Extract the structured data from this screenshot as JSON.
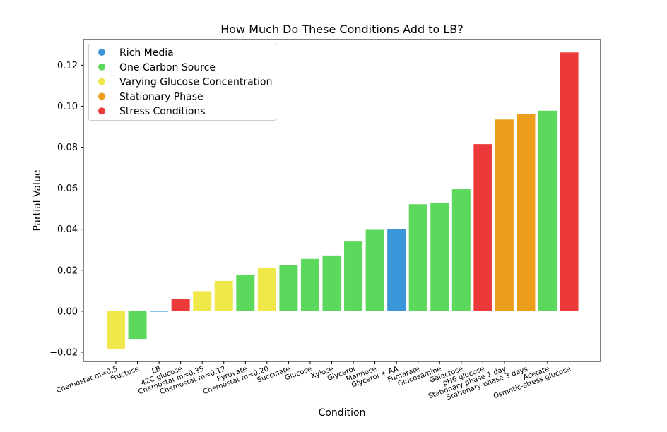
{
  "chart_data": {
    "type": "bar",
    "title": "How Much Do These Conditions Add to LB?",
    "xlabel": "Condition",
    "ylabel": "Partial Value",
    "ylim": [
      -0.0245,
      0.1325
    ],
    "yticks": [
      -0.02,
      0.0,
      0.02,
      0.04,
      0.06,
      0.08,
      0.1,
      0.12
    ],
    "ytick_labels": [
      "−0.02",
      "0.00",
      "0.02",
      "0.04",
      "0.06",
      "0.08",
      "0.10",
      "0.12"
    ],
    "grid": false,
    "legend_position": "top-left",
    "legend": [
      {
        "name": "Rich Media",
        "color": "#3a96d9"
      },
      {
        "name": "One Carbon Source",
        "color": "#5cd95c"
      },
      {
        "name": "Varying Glucose Concentration",
        "color": "#f0e84a"
      },
      {
        "name": "Stationary Phase",
        "color": "#ec9e1b"
      },
      {
        "name": "Stress Conditions",
        "color": "#ec3a3a"
      }
    ],
    "categories": [
      "Chemostat m=0.5",
      "Fructose",
      "LB",
      "42C glucose",
      "Chemostat m=0.35",
      "Chemostat m=0.12",
      "Pyruvate",
      "Chemostat m=0.20",
      "Succinate",
      "Glucose",
      "Xylose",
      "Glycerol",
      "Mannose",
      "Glycerol + AA",
      "Fumarate",
      "Glucosamine",
      "Galactose",
      "pH6 glucose",
      "Stationary phase 1 day",
      "Stationary phase 3 days",
      "Acetate",
      "Osmotic-stress glucose"
    ],
    "values": [
      -0.0185,
      -0.0135,
      0.0,
      0.006,
      0.0098,
      0.0148,
      0.0175,
      0.0212,
      0.0225,
      0.0255,
      0.0272,
      0.034,
      0.0397,
      0.0402,
      0.0522,
      0.0528,
      0.0595,
      0.0815,
      0.0935,
      0.0962,
      0.0978,
      0.1262
    ],
    "groups": [
      "Varying Glucose Concentration",
      "One Carbon Source",
      "Rich Media",
      "Stress Conditions",
      "Varying Glucose Concentration",
      "Varying Glucose Concentration",
      "One Carbon Source",
      "Varying Glucose Concentration",
      "One Carbon Source",
      "One Carbon Source",
      "One Carbon Source",
      "One Carbon Source",
      "One Carbon Source",
      "Rich Media",
      "One Carbon Source",
      "One Carbon Source",
      "One Carbon Source",
      "Stress Conditions",
      "Stationary Phase",
      "Stationary Phase",
      "One Carbon Source",
      "Stress Conditions"
    ]
  }
}
